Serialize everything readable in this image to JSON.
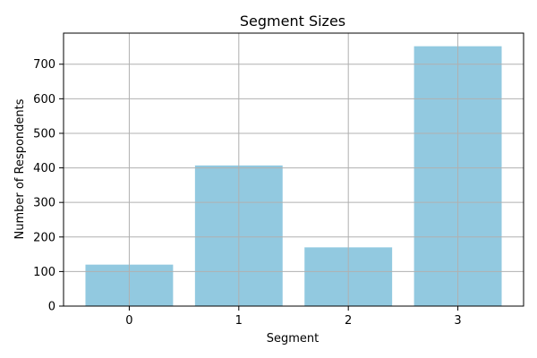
{
  "chart_data": {
    "type": "bar",
    "title": "Segment Sizes",
    "xlabel": "Segment",
    "ylabel": "Number of Respondents",
    "categories": [
      "0",
      "1",
      "2",
      "3"
    ],
    "values": [
      120,
      407,
      170,
      752
    ],
    "ylim": [
      0,
      790
    ],
    "yticks": [
      0,
      100,
      200,
      300,
      400,
      500,
      600,
      700
    ],
    "grid": true,
    "colors": {
      "bar": "#92c9e0",
      "grid": "#b0b0b0",
      "axis": "#000000"
    }
  }
}
